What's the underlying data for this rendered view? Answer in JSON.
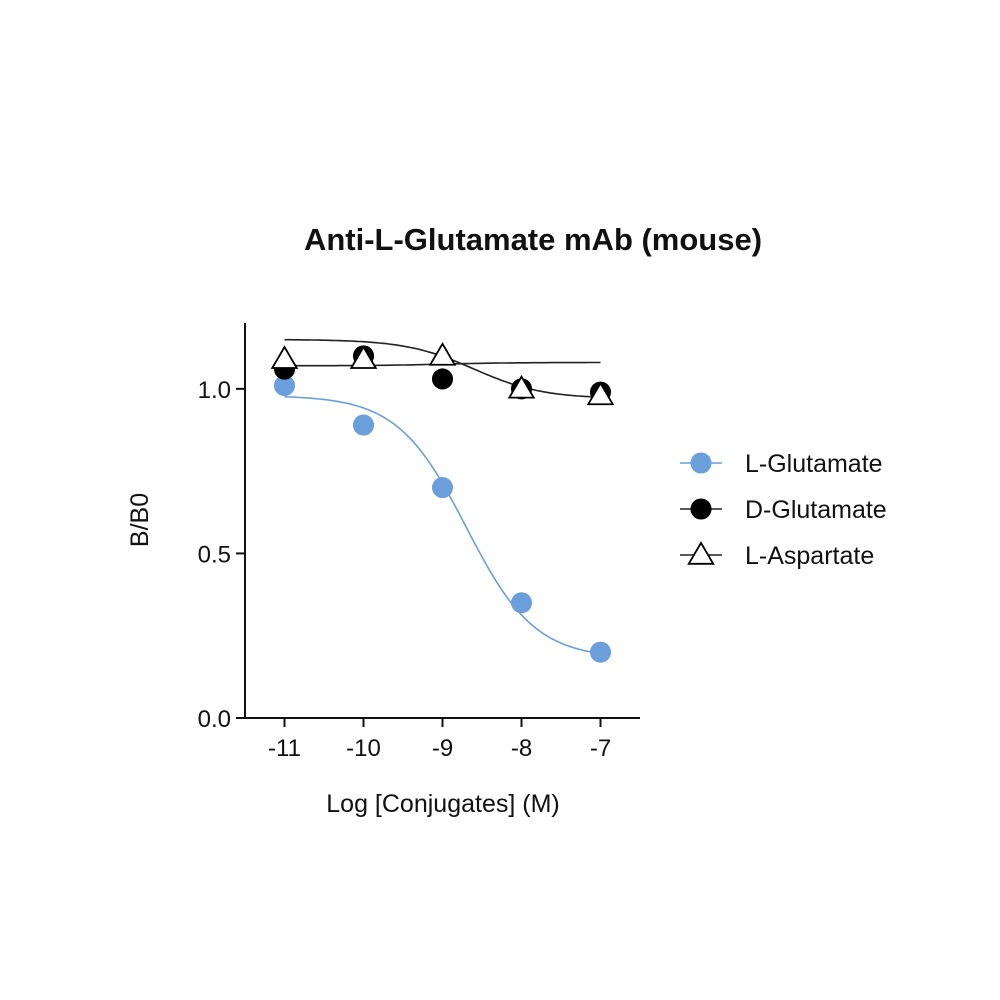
{
  "chart_data": {
    "type": "scatter",
    "title": "Anti-L-Glutamate mAb (mouse)",
    "xlabel": "Log [Conjugates] (M)",
    "ylabel": "B/B0",
    "xlim": [
      -11.5,
      -6.5
    ],
    "ylim": [
      0.0,
      1.2
    ],
    "x_ticks": [
      -11,
      -10,
      -9,
      -8,
      -7
    ],
    "x_tick_labels": [
      "-11",
      "-10",
      "-9",
      "-8",
      "-7"
    ],
    "y_ticks": [
      0.0,
      0.5,
      1.0
    ],
    "y_tick_labels": [
      "0.0",
      "0.5",
      "1.0"
    ],
    "grid": false,
    "legend_position": "right",
    "series": [
      {
        "name": "L-Glutamate",
        "marker": "filled-circle",
        "color": "#6a9fdc",
        "line_color": "#6a9fdc",
        "x": [
          -11,
          -10,
          -9,
          -8,
          -7
        ],
        "y": [
          1.01,
          0.89,
          0.7,
          0.35,
          0.2
        ],
        "fit": {
          "top": 0.98,
          "bottom": 0.18,
          "log_ec50": -8.7,
          "hill": -1.0
        }
      },
      {
        "name": "D-Glutamate",
        "marker": "filled-circle",
        "color": "#000000",
        "line_color": "#222222",
        "x": [
          -11,
          -10,
          -9,
          -8,
          -7
        ],
        "y": [
          1.06,
          1.1,
          1.03,
          1.0,
          0.99
        ],
        "fit": {
          "top": 1.07,
          "bottom": 1.08,
          "log_ec50": -9.0,
          "hill": -1.0
        }
      },
      {
        "name": "L-Aspartate",
        "marker": "open-triangle",
        "color": "#000000",
        "line_color": "#222222",
        "x": [
          -11,
          -10,
          -9,
          -8,
          -7
        ],
        "y": [
          1.09,
          1.09,
          1.1,
          1.0,
          0.98
        ],
        "fit": {
          "top": 1.15,
          "bottom": 0.97,
          "log_ec50": -8.6,
          "hill": -1.0
        }
      }
    ]
  }
}
